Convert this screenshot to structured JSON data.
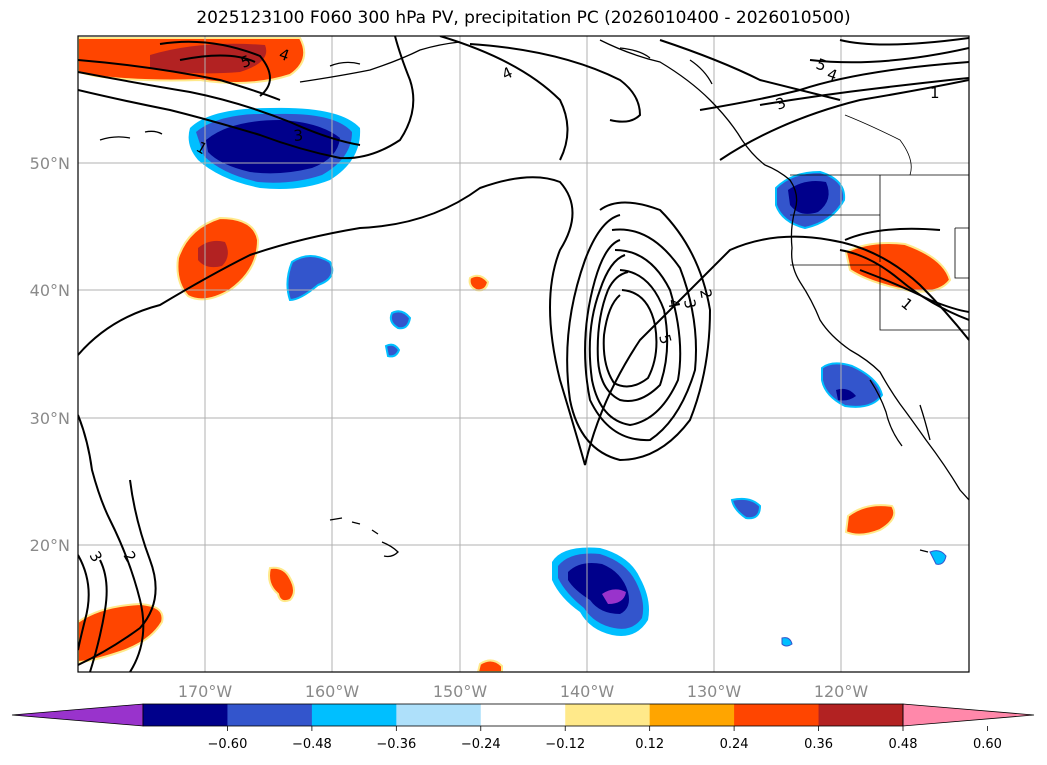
{
  "title": "2025123100 F060 300 hPa PV, precipitation PC (2026010400 - 2026010500)",
  "map": {
    "lat_labels": [
      "50°N",
      "40°N",
      "30°N",
      "20°N"
    ],
    "lon_labels": [
      "170°W",
      "160°W",
      "150°W",
      "140°W",
      "130°W",
      "120°W"
    ],
    "gridlines": true,
    "contour_color": "#000000",
    "contour_labels": [
      {
        "text": "4",
        "rotate": -25
      },
      {
        "text": "5",
        "rotate": -20
      },
      {
        "text": "1",
        "rotate": 30
      },
      {
        "text": "3",
        "rotate": -5
      },
      {
        "text": "4",
        "rotate": 20
      },
      {
        "text": "5",
        "rotate": 20
      },
      {
        "text": "4",
        "rotate": 20
      },
      {
        "text": "3",
        "rotate": -20
      },
      {
        "text": "1",
        "rotate": 0
      },
      {
        "text": "2",
        "rotate": 80
      },
      {
        "text": "3",
        "rotate": 80
      },
      {
        "text": "4",
        "rotate": 80
      },
      {
        "text": "5",
        "rotate": 75
      },
      {
        "text": "1",
        "rotate": 40
      },
      {
        "text": "3",
        "rotate": 60
      },
      {
        "text": "2",
        "rotate": 60
      }
    ]
  },
  "colorbar": {
    "ticks": [
      "−0.60",
      "−0.48",
      "−0.36",
      "−0.24",
      "−0.12",
      "0.12",
      "0.24",
      "0.36",
      "0.48",
      "0.60"
    ],
    "colors": [
      "#9933cc",
      "#00008b",
      "#3355cc",
      "#00bfff",
      "#aee0fa",
      "#ffffff",
      "#ffe98a",
      "#ffa500",
      "#ff4500",
      "#b22222",
      "#ff88aa"
    ]
  }
}
